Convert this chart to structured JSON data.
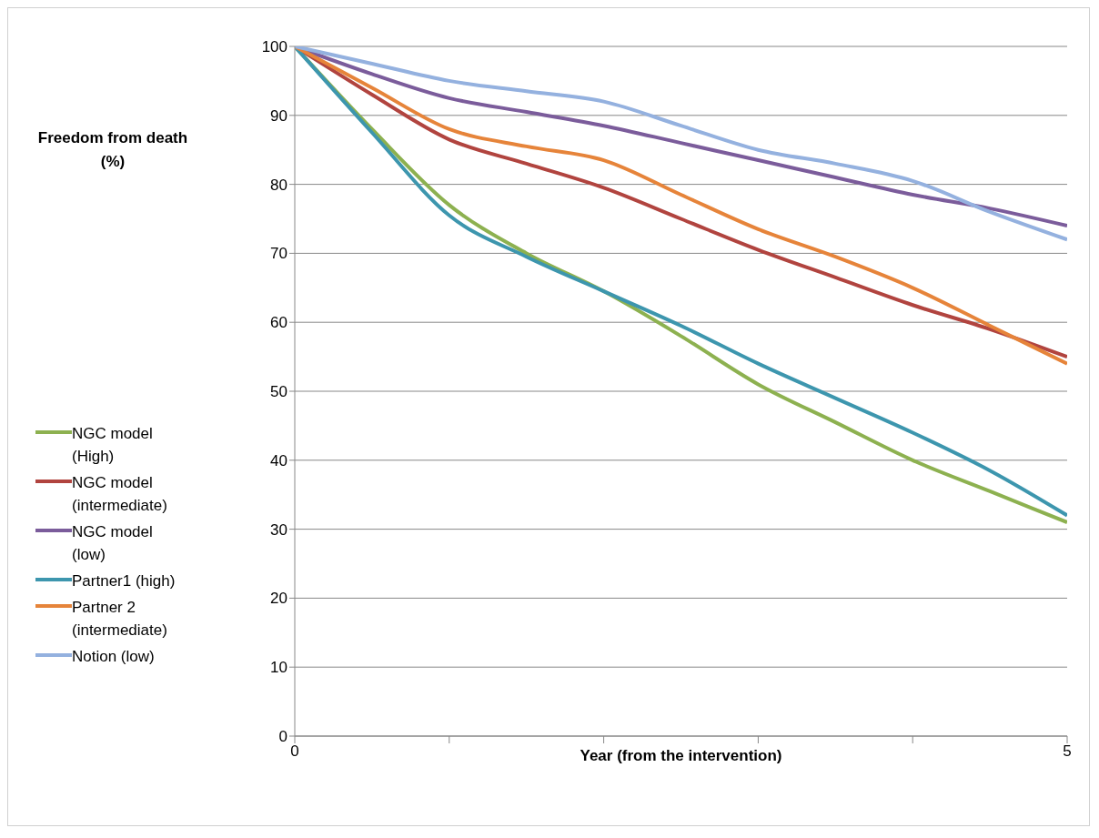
{
  "chart_data": {
    "type": "line",
    "xlabel": "Year (from the intervention)",
    "ylabel": "Freedom from death (%)",
    "x": [
      0,
      0.5,
      1,
      1.5,
      2,
      2.5,
      3,
      3.5,
      4,
      4.5,
      5
    ],
    "series": [
      {
        "name": "NGC model (High)",
        "color": "#8db150",
        "values": [
          100,
          88,
          77,
          70,
          64.5,
          58,
          51,
          45.5,
          40,
          35.5,
          31
        ]
      },
      {
        "name": "NGC model (intermediate)",
        "color": "#b1443f",
        "values": [
          100,
          93,
          86.5,
          83,
          79.5,
          75,
          70.5,
          66.5,
          62.5,
          59,
          55
        ]
      },
      {
        "name": "NGC model (low)",
        "color": "#7b5c9b",
        "values": [
          100,
          96,
          92.5,
          90.5,
          88.5,
          86,
          83.5,
          81,
          78.5,
          76.5,
          74
        ]
      },
      {
        "name": "Partner1 (high)",
        "color": "#3d96ae",
        "values": [
          100,
          87.5,
          75.5,
          69.5,
          64.5,
          59.5,
          54,
          49,
          44,
          38.5,
          32
        ]
      },
      {
        "name": "Partner 2 (intermediate)",
        "color": "#e6843a",
        "values": [
          100,
          94,
          88,
          85.5,
          83.5,
          78.5,
          73.5,
          69.5,
          65,
          59.5,
          54
        ]
      },
      {
        "name": "Notion (low)",
        "color": "#94b1df",
        "values": [
          100,
          97.5,
          95,
          93.5,
          92,
          88.5,
          85,
          83,
          80.5,
          76,
          72
        ]
      }
    ],
    "xlim": [
      0,
      5
    ],
    "xticks": [
      0,
      {
        "value": 1,
        "label": null
      },
      {
        "value": 2,
        "label": null
      },
      {
        "value": 3,
        "label": null
      },
      {
        "value": 4,
        "label": null
      },
      5
    ],
    "ylim": [
      0,
      100
    ],
    "yticks": [
      0,
      10,
      20,
      30,
      40,
      50,
      60,
      70,
      80,
      90,
      100
    ],
    "grid": "y",
    "legend": "left",
    "marker": "none",
    "line_style": "solid"
  }
}
